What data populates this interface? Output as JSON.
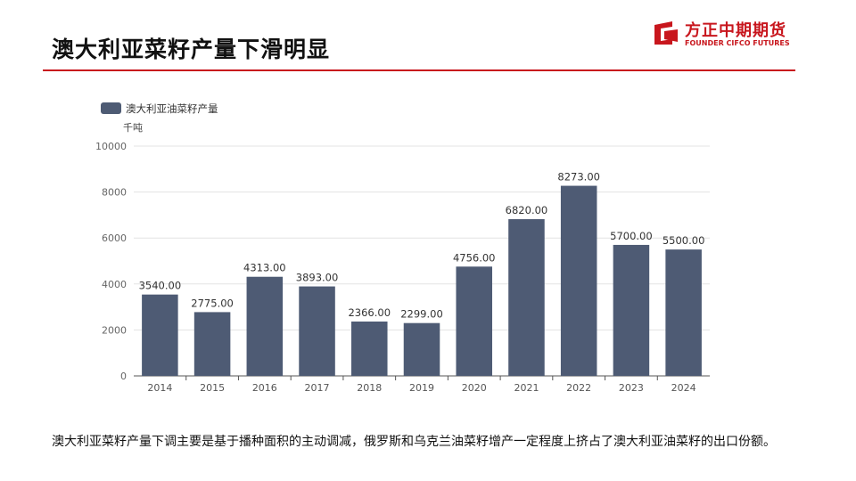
{
  "header": {
    "title": "澳大利亚菜籽产量下滑明显",
    "logo_cn": "方正中期期货",
    "logo_en": "FOUNDER CIFCO FUTURES",
    "brand_color": "#c8161d"
  },
  "chart_data": {
    "type": "bar",
    "categories": [
      "2014",
      "2015",
      "2016",
      "2017",
      "2018",
      "2019",
      "2020",
      "2021",
      "2022",
      "2023",
      "2024"
    ],
    "series": [
      {
        "name": "澳大利亚油菜籽产量",
        "values": [
          3540,
          2775,
          4313,
          3893,
          2366,
          2299,
          4756,
          6820,
          8273,
          5700,
          5500
        ],
        "labels": [
          "3540.00",
          "2775.00",
          "4313.00",
          "3893.00",
          "2366.00",
          "2299.00",
          "4756.00",
          "6820.00",
          "8273.00",
          "5700.00",
          "5500.00"
        ],
        "color": "#4e5b74"
      }
    ],
    "ylabel": "千吨",
    "ylim": [
      0,
      10000
    ],
    "yticks": [
      "0",
      "2000",
      "4000",
      "6000",
      "8000",
      "10000"
    ],
    "grid": true,
    "legend": "top-left"
  },
  "caption": "澳大利亚菜籽产量下调主要是基于播种面积的主动调减，俄罗斯和乌克兰油菜籽增产一定程度上挤占了澳大利亚油菜籽的出口份额。"
}
